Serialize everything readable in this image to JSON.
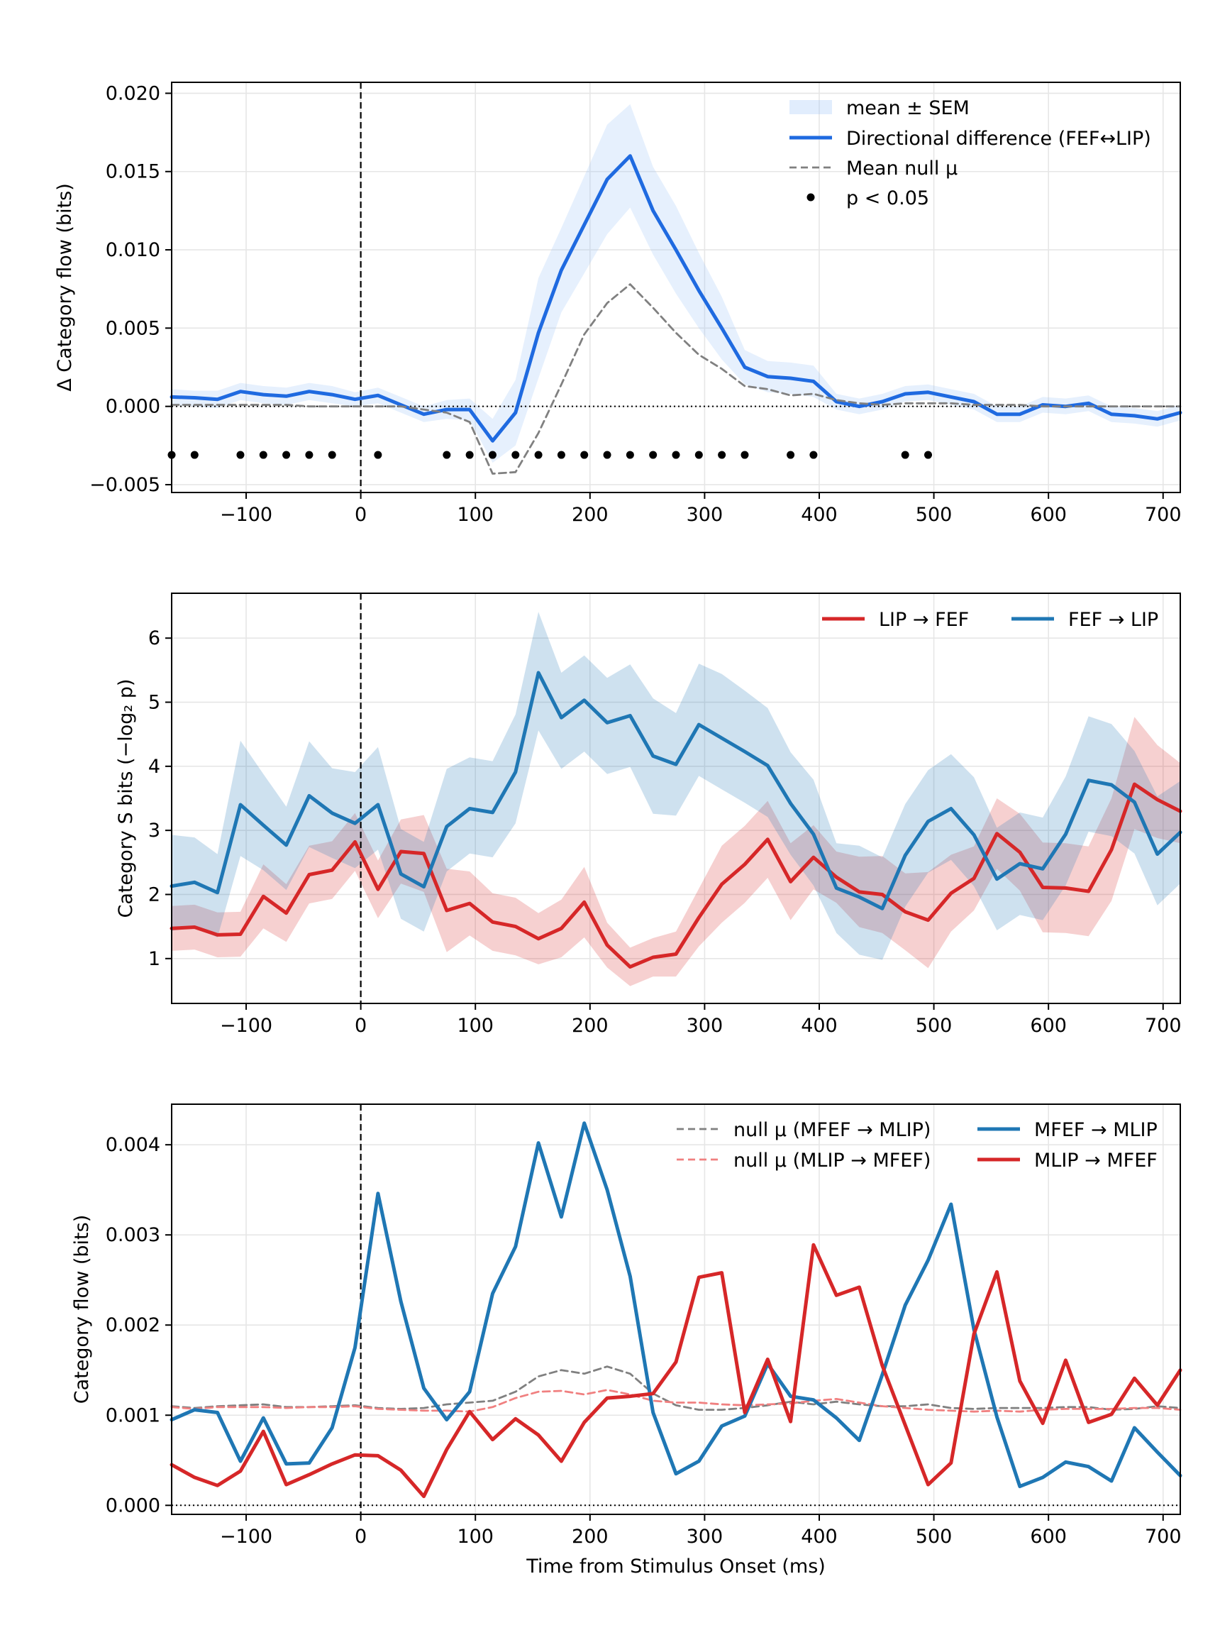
{
  "chart_data": [
    {
      "type": "line",
      "xlabel": "",
      "ylabel": "Δ Category flow (bits)",
      "xlim": [
        -165,
        715
      ],
      "ylim": [
        -0.0055,
        0.0207
      ],
      "xticks": [
        -100,
        0,
        100,
        200,
        300,
        400,
        500,
        600,
        700
      ],
      "xtick_labels": [
        "−100",
        "0",
        "100",
        "200",
        "300",
        "400",
        "500",
        "600",
        "700"
      ],
      "yticks": [
        -0.005,
        0.0,
        0.005,
        0.01,
        0.015,
        0.02
      ],
      "ytick_labels": [
        "−0.005",
        "0.000",
        "0.005",
        "0.010",
        "0.015",
        "0.020"
      ],
      "grid": true,
      "legend_position": "top-right",
      "x": [
        -165,
        -145,
        -125,
        -105,
        -85,
        -65,
        -45,
        -25,
        -5,
        15,
        35,
        55,
        75,
        95,
        115,
        135,
        155,
        175,
        195,
        215,
        235,
        255,
        275,
        295,
        315,
        335,
        355,
        375,
        395,
        415,
        435,
        455,
        475,
        495,
        515,
        535,
        555,
        575,
        595,
        615,
        635,
        655,
        675,
        695,
        715
      ],
      "series": [
        {
          "name": "Directional difference (FEF↔LIP)",
          "style": "solid",
          "color": "#1f6ae0",
          "values": [
            0.0006,
            0.00055,
            0.00045,
            0.00095,
            0.00075,
            0.00065,
            0.00095,
            0.00075,
            0.00045,
            0.0007,
            0.0001,
            -0.0005,
            -0.0002,
            -0.0002,
            -0.0022,
            -0.0004,
            0.0047,
            0.0087,
            0.0116,
            0.0145,
            0.016,
            0.0125,
            0.01,
            0.0074,
            0.005,
            0.0025,
            0.0019,
            0.0018,
            0.0016,
            0.0003,
            0.0,
            0.0003,
            0.0008,
            0.0009,
            0.0006,
            0.0003,
            -0.0005,
            -0.0005,
            0.0001,
            0.0,
            0.0002,
            -0.0005,
            -0.0006,
            -0.0008,
            -0.0004
          ],
          "sem_lower": [
            0.0001,
            0.0,
            -0.0001,
            0.0004,
            0.0002,
            0.0001,
            0.0004,
            0.0002,
            0.0,
            0.0002,
            -0.0004,
            -0.001,
            -0.0008,
            -0.0009,
            -0.0036,
            -0.0025,
            0.0018,
            0.006,
            0.0085,
            0.011,
            0.0127,
            0.0097,
            0.0072,
            0.005,
            0.003,
            0.0014,
            0.0009,
            0.0008,
            0.0006,
            -0.0002,
            -0.0005,
            -0.0002,
            0.0003,
            0.0004,
            0.0001,
            -0.0002,
            -0.001,
            -0.001,
            -0.0004,
            -0.0005,
            -0.0003,
            -0.001,
            -0.0011,
            -0.0013,
            -0.0009
          ],
          "sem_upper": [
            0.0011,
            0.001,
            0.001,
            0.0015,
            0.0013,
            0.0012,
            0.0015,
            0.0013,
            0.0009,
            0.0012,
            0.0006,
            0.0,
            0.0004,
            0.0005,
            -0.0008,
            0.0017,
            0.0082,
            0.0114,
            0.0147,
            0.018,
            0.0193,
            0.0153,
            0.0128,
            0.0098,
            0.007,
            0.0036,
            0.0029,
            0.0028,
            0.0026,
            0.0008,
            0.0005,
            0.0008,
            0.0013,
            0.0014,
            0.0011,
            0.0008,
            0.0,
            0.0,
            0.0006,
            0.0005,
            0.0007,
            0.0,
            -0.0001,
            -0.0003,
            0.0001
          ]
        },
        {
          "name": "Mean null μ",
          "style": "dashed",
          "color": "#808080",
          "values": [
            0.0001,
            0.0001,
            0.0001,
            0.0001,
            0.0001,
            0.0001,
            0.0,
            0.0,
            0.0,
            0.0,
            0.0,
            -0.0002,
            -0.0004,
            -0.001,
            -0.0043,
            -0.0042,
            -0.0017,
            0.0014,
            0.0046,
            0.0066,
            0.0078,
            0.0063,
            0.0047,
            0.0033,
            0.0024,
            0.0013,
            0.0011,
            0.0007,
            0.0008,
            0.0004,
            0.0002,
            0.0001,
            0.0002,
            0.0002,
            0.0002,
            0.0001,
            0.0001,
            0.0001,
            0.0,
            0.0,
            0.0,
            0.0,
            0.0,
            0.0,
            0.0
          ]
        }
      ],
      "significance": {
        "name": "p < 0.05",
        "y": -0.0031,
        "x": [
          -165,
          -145,
          -105,
          -85,
          -65,
          -45,
          -25,
          15,
          75,
          95,
          115,
          135,
          155,
          175,
          195,
          215,
          235,
          255,
          275,
          295,
          315,
          335,
          375,
          395,
          475,
          495
        ]
      },
      "band_legend_name": "mean ± SEM",
      "legend": [
        "mean ± SEM",
        "Directional difference (FEF↔LIP)",
        "Mean null μ",
        "p < 0.05"
      ]
    },
    {
      "type": "line",
      "xlabel": "",
      "ylabel": "Category S bits (−log₂ p)",
      "xlim": [
        -165,
        715
      ],
      "ylim": [
        0.3,
        6.7
      ],
      "xticks": [
        -100,
        0,
        100,
        200,
        300,
        400,
        500,
        600,
        700
      ],
      "xtick_labels": [
        "−100",
        "0",
        "100",
        "200",
        "300",
        "400",
        "500",
        "600",
        "700"
      ],
      "yticks": [
        1,
        2,
        3,
        4,
        5,
        6
      ],
      "ytick_labels": [
        "1",
        "2",
        "3",
        "4",
        "5",
        "6"
      ],
      "grid": true,
      "legend_position": "top-right",
      "x": [
        -165,
        -145,
        -125,
        -105,
        -85,
        -65,
        -45,
        -25,
        -5,
        15,
        35,
        55,
        75,
        95,
        115,
        135,
        155,
        175,
        195,
        215,
        235,
        255,
        275,
        295,
        315,
        335,
        355,
        375,
        395,
        415,
        435,
        455,
        475,
        495,
        515,
        535,
        555,
        575,
        595,
        615,
        635,
        655,
        675,
        695,
        715
      ],
      "series": [
        {
          "name": "LIP → FEF",
          "color": "#d62728",
          "values": [
            1.47,
            1.49,
            1.37,
            1.38,
            1.97,
            1.71,
            2.31,
            2.38,
            2.82,
            2.08,
            2.67,
            2.64,
            1.75,
            1.86,
            1.57,
            1.5,
            1.31,
            1.47,
            1.88,
            1.21,
            0.87,
            1.02,
            1.07,
            1.64,
            2.16,
            2.47,
            2.86,
            2.2,
            2.58,
            2.27,
            2.04,
            2.0,
            1.73,
            1.6,
            2.02,
            2.25,
            2.95,
            2.66,
            2.11,
            2.1,
            2.05,
            2.7,
            3.72,
            3.48,
            3.3
          ],
          "band_lower": [
            1.12,
            1.14,
            1.02,
            1.03,
            1.47,
            1.26,
            1.86,
            1.93,
            2.37,
            1.63,
            2.17,
            2.04,
            1.1,
            1.36,
            1.12,
            1.05,
            0.91,
            1.02,
            1.33,
            0.86,
            0.57,
            0.72,
            0.72,
            1.19,
            1.56,
            1.87,
            2.26,
            1.6,
            2.08,
            1.87,
            1.49,
            1.4,
            1.13,
            0.85,
            1.42,
            1.75,
            2.4,
            2.06,
            1.41,
            1.4,
            1.35,
            1.9,
            3.02,
            2.88,
            2.8
          ],
          "band_upper": [
            1.82,
            1.84,
            1.72,
            1.73,
            2.47,
            2.16,
            2.76,
            2.83,
            3.27,
            2.53,
            3.17,
            3.24,
            2.4,
            2.36,
            2.02,
            1.95,
            1.71,
            1.92,
            2.43,
            1.56,
            1.17,
            1.32,
            1.42,
            2.09,
            2.76,
            3.07,
            3.46,
            2.8,
            3.08,
            2.67,
            2.59,
            2.6,
            2.33,
            2.35,
            2.62,
            2.75,
            3.5,
            3.26,
            2.81,
            2.8,
            2.75,
            3.5,
            4.77,
            4.33,
            4.05
          ]
        },
        {
          "name": "FEF → LIP",
          "color": "#1f77b4",
          "values": [
            2.13,
            2.19,
            2.03,
            3.4,
            3.08,
            2.77,
            3.54,
            3.27,
            3.11,
            3.4,
            2.32,
            2.12,
            3.06,
            3.34,
            3.28,
            3.91,
            5.46,
            4.76,
            5.03,
            4.68,
            4.79,
            4.16,
            4.03,
            4.65,
            4.44,
            4.23,
            4.01,
            3.42,
            2.94,
            2.1,
            1.96,
            1.78,
            2.61,
            3.14,
            3.34,
            2.93,
            2.24,
            2.48,
            2.4,
            2.94,
            3.78,
            3.71,
            3.44,
            2.63,
            2.97
          ],
          "band_lower": [
            1.43,
            1.49,
            1.33,
            2.6,
            2.38,
            2.07,
            2.74,
            2.57,
            2.41,
            2.7,
            1.62,
            1.42,
            2.36,
            2.64,
            2.58,
            3.11,
            4.56,
            3.96,
            4.23,
            3.88,
            3.99,
            3.26,
            3.23,
            3.85,
            3.64,
            3.43,
            3.21,
            2.62,
            2.14,
            1.4,
            1.06,
            0.98,
            1.81,
            2.34,
            2.54,
            2.13,
            1.44,
            1.68,
            1.6,
            2.14,
            2.98,
            2.91,
            2.64,
            1.83,
            2.17
          ],
          "band_upper": [
            2.93,
            2.89,
            2.63,
            4.4,
            3.88,
            3.37,
            4.39,
            3.97,
            3.91,
            4.3,
            3.02,
            2.82,
            3.96,
            4.14,
            4.08,
            4.81,
            6.41,
            5.46,
            5.73,
            5.38,
            5.59,
            5.06,
            4.83,
            5.6,
            5.44,
            5.18,
            4.91,
            4.22,
            3.79,
            2.8,
            2.76,
            2.58,
            3.41,
            3.94,
            4.19,
            3.83,
            3.04,
            3.28,
            3.2,
            3.84,
            4.78,
            4.66,
            4.24,
            3.53,
            3.77
          ]
        }
      ],
      "legend": [
        "LIP → FEF",
        "FEF → LIP"
      ]
    },
    {
      "type": "line",
      "xlabel": "Time from Stimulus Onset (ms)",
      "ylabel": "Category flow (bits)",
      "xlim": [
        -165,
        715
      ],
      "ylim": [
        -0.0001,
        0.00445
      ],
      "xticks": [
        -100,
        0,
        100,
        200,
        300,
        400,
        500,
        600,
        700
      ],
      "xtick_labels": [
        "−100",
        "0",
        "100",
        "200",
        "300",
        "400",
        "500",
        "600",
        "700"
      ],
      "yticks": [
        0.0,
        0.001,
        0.002,
        0.003,
        0.004
      ],
      "ytick_labels": [
        "0.000",
        "0.001",
        "0.002",
        "0.003",
        "0.004"
      ],
      "grid": true,
      "legend_position": "top-right",
      "x": [
        -165,
        -145,
        -125,
        -105,
        -85,
        -65,
        -45,
        -25,
        -5,
        15,
        35,
        55,
        75,
        95,
        115,
        135,
        155,
        175,
        195,
        215,
        235,
        255,
        275,
        295,
        315,
        335,
        355,
        375,
        395,
        415,
        435,
        455,
        475,
        495,
        515,
        535,
        555,
        575,
        595,
        615,
        635,
        655,
        675,
        695,
        715
      ],
      "series": [
        {
          "name": "null μ (MFEF → MLIP)",
          "style": "dashed",
          "color": "#808080",
          "values": [
            0.0011,
            0.00108,
            0.0011,
            0.00111,
            0.00112,
            0.00109,
            0.00109,
            0.0011,
            0.00111,
            0.00108,
            0.00107,
            0.00108,
            0.00112,
            0.00114,
            0.00116,
            0.00126,
            0.00143,
            0.0015,
            0.00146,
            0.00154,
            0.00146,
            0.00124,
            0.00111,
            0.00106,
            0.00106,
            0.00108,
            0.00111,
            0.00115,
            0.00112,
            0.00115,
            0.00112,
            0.0011,
            0.0011,
            0.00112,
            0.00108,
            0.00107,
            0.00108,
            0.00108,
            0.00108,
            0.00109,
            0.00109,
            0.00106,
            0.00107,
            0.0011,
            0.00108
          ]
        },
        {
          "name": "null μ (MLIP → MFEF)",
          "style": "dashed",
          "color": "#f08080",
          "values": [
            0.00109,
            0.00107,
            0.00109,
            0.00109,
            0.00109,
            0.00108,
            0.00109,
            0.00109,
            0.0011,
            0.00107,
            0.00106,
            0.00105,
            0.00105,
            0.00104,
            0.00109,
            0.00119,
            0.00126,
            0.00127,
            0.00123,
            0.00128,
            0.00123,
            0.00116,
            0.00114,
            0.00114,
            0.00112,
            0.00111,
            0.00112,
            0.00113,
            0.00116,
            0.00118,
            0.00114,
            0.0011,
            0.00108,
            0.00106,
            0.00105,
            0.00104,
            0.00105,
            0.00104,
            0.00106,
            0.00107,
            0.00107,
            0.00107,
            0.00108,
            0.00108,
            0.00106
          ]
        },
        {
          "name": "MFEF → MLIP",
          "style": "solid",
          "color": "#1f77b4",
          "values": [
            0.00095,
            0.00106,
            0.00103,
            0.00049,
            0.00097,
            0.00046,
            0.00047,
            0.00086,
            0.00175,
            0.00346,
            0.00226,
            0.0013,
            0.00095,
            0.00126,
            0.00235,
            0.00287,
            0.00402,
            0.0032,
            0.00424,
            0.0035,
            0.00254,
            0.00103,
            0.00035,
            0.00049,
            0.00088,
            0.00099,
            0.00157,
            0.00121,
            0.00117,
            0.00097,
            0.00072,
            0.00145,
            0.00222,
            0.00272,
            0.00334,
            0.00195,
            0.00098,
            0.00021,
            0.00031,
            0.00048,
            0.00043,
            0.00027,
            0.00086,
            0.00059,
            0.00033
          ]
        },
        {
          "name": "MLIP → MFEF",
          "style": "solid",
          "color": "#d62728",
          "values": [
            0.00045,
            0.00031,
            0.00022,
            0.00038,
            0.00082,
            0.00023,
            0.00034,
            0.00046,
            0.00056,
            0.00055,
            0.00039,
            0.0001,
            0.00062,
            0.00104,
            0.00073,
            0.00096,
            0.00078,
            0.00049,
            0.00092,
            0.00119,
            0.00121,
            0.00124,
            0.00159,
            0.00253,
            0.00258,
            0.00103,
            0.00162,
            0.00093,
            0.00289,
            0.00233,
            0.00242,
            0.00155,
            0.00089,
            0.00023,
            0.00047,
            0.0019,
            0.00259,
            0.00138,
            0.00091,
            0.00161,
            0.00092,
            0.00101,
            0.00141,
            0.00111,
            0.0015
          ]
        }
      ],
      "legend": [
        "null μ (MFEF → MLIP)",
        "null μ (MLIP → MFEF)",
        "MFEF → MLIP",
        "MLIP → MFEF"
      ]
    }
  ]
}
